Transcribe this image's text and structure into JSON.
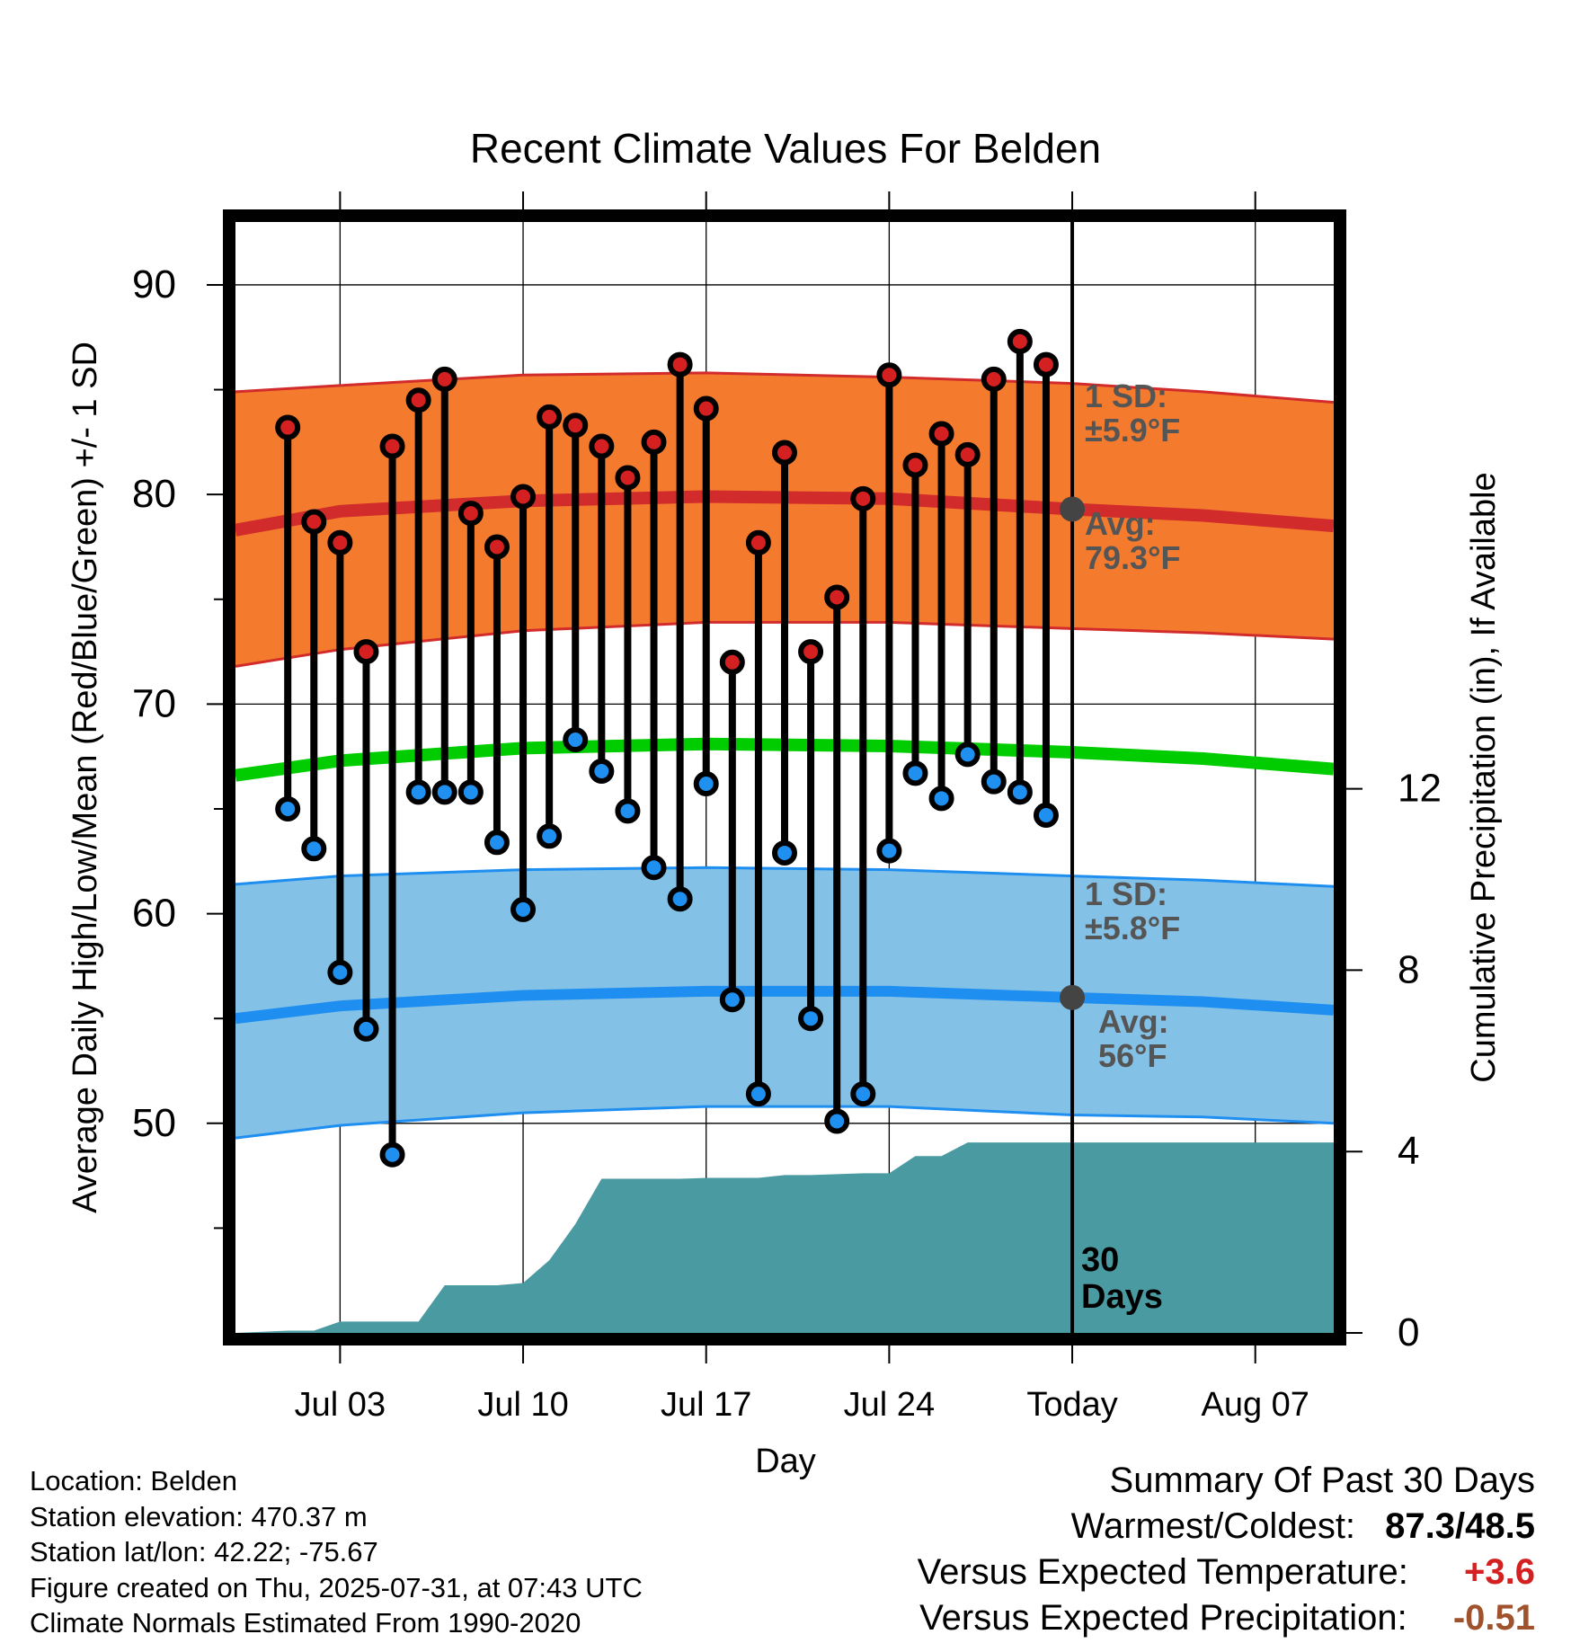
{
  "chart_data": {
    "type": "line",
    "title": "Recent Climate Values For Belden",
    "xlabel": "Day",
    "ylabel_left": "Average Daily High/Low/Mean (Red/Blue/Green) +/- 1 SD",
    "ylabel_right": "Cumulative Precipitation (in), If Available",
    "xlim": [
      "2025-06-29",
      "2025-08-10"
    ],
    "ylim_left": [
      40,
      93
    ],
    "ylim_right": [
      0,
      24.5
    ],
    "x_ticks": [
      {
        "date": "2025-07-03",
        "label": "Jul 03"
      },
      {
        "date": "2025-07-10",
        "label": "Jul 10"
      },
      {
        "date": "2025-07-17",
        "label": "Jul 17"
      },
      {
        "date": "2025-07-24",
        "label": "Jul 24"
      },
      {
        "date": "2025-07-31",
        "label": "Today"
      },
      {
        "date": "2025-08-07",
        "label": "Aug 07"
      }
    ],
    "y_ticks_left": [
      50,
      60,
      70,
      80,
      90
    ],
    "y_ticks_right": [
      0,
      4,
      8,
      12
    ],
    "grid": true,
    "today": "2025-07-31",
    "period_label": "30\nDays",
    "days": [
      "2025-07-01",
      "2025-07-02",
      "2025-07-03",
      "2025-07-04",
      "2025-07-05",
      "2025-07-06",
      "2025-07-07",
      "2025-07-08",
      "2025-07-09",
      "2025-07-10",
      "2025-07-11",
      "2025-07-12",
      "2025-07-13",
      "2025-07-14",
      "2025-07-15",
      "2025-07-16",
      "2025-07-17",
      "2025-07-18",
      "2025-07-19",
      "2025-07-20",
      "2025-07-21",
      "2025-07-22",
      "2025-07-23",
      "2025-07-24",
      "2025-07-25",
      "2025-07-26",
      "2025-07-27",
      "2025-07-28",
      "2025-07-29",
      "2025-07-30"
    ],
    "daily_high": [
      83.2,
      78.7,
      77.7,
      72.5,
      82.3,
      84.5,
      85.5,
      79.1,
      77.5,
      79.9,
      83.7,
      83.3,
      82.3,
      80.8,
      82.5,
      86.2,
      84.1,
      72.0,
      77.7,
      82.0,
      72.5,
      75.1,
      79.8,
      85.7,
      81.4,
      82.9,
      81.9,
      85.5,
      87.3,
      86.2
    ],
    "daily_low": [
      65.0,
      63.1,
      57.2,
      54.5,
      48.5,
      65.8,
      65.8,
      65.8,
      63.4,
      60.2,
      63.7,
      68.3,
      66.8,
      64.9,
      62.2,
      60.7,
      66.2,
      55.9,
      51.4,
      62.9,
      55.0,
      50.1,
      51.4,
      63.0,
      66.7,
      65.5,
      67.6,
      66.3,
      65.8,
      64.7
    ],
    "normals_x": [
      "2025-06-29",
      "2025-07-03",
      "2025-07-10",
      "2025-07-17",
      "2025-07-24",
      "2025-07-31",
      "2025-08-05",
      "2025-08-10"
    ],
    "high_avg": [
      78.3,
      79.2,
      79.7,
      79.9,
      79.8,
      79.3,
      79.0,
      78.5
    ],
    "high_upper": [
      84.9,
      85.2,
      85.7,
      85.8,
      85.6,
      85.3,
      84.9,
      84.4
    ],
    "high_lower": [
      71.8,
      72.6,
      73.5,
      73.9,
      73.9,
      73.6,
      73.4,
      73.1
    ],
    "low_avg": [
      55.0,
      55.6,
      56.1,
      56.3,
      56.3,
      56.0,
      55.8,
      55.4
    ],
    "low_upper": [
      61.4,
      61.8,
      62.1,
      62.2,
      62.1,
      61.8,
      61.6,
      61.3
    ],
    "low_lower": [
      49.3,
      49.9,
      50.5,
      50.8,
      50.8,
      50.4,
      50.3,
      50.0
    ],
    "mean_avg": [
      66.6,
      67.3,
      67.9,
      68.1,
      68.0,
      67.7,
      67.4,
      66.9
    ],
    "precip_x": [
      "2025-06-29",
      "2025-07-01",
      "2025-07-02",
      "2025-07-03",
      "2025-07-04",
      "2025-07-05",
      "2025-07-06",
      "2025-07-07",
      "2025-07-08",
      "2025-07-09",
      "2025-07-10",
      "2025-07-11",
      "2025-07-12",
      "2025-07-13",
      "2025-07-14",
      "2025-07-15",
      "2025-07-16",
      "2025-07-17",
      "2025-07-18",
      "2025-07-19",
      "2025-07-20",
      "2025-07-21",
      "2025-07-22",
      "2025-07-23",
      "2025-07-24",
      "2025-07-25",
      "2025-07-26",
      "2025-07-27",
      "2025-07-28",
      "2025-07-29",
      "2025-07-30",
      "2025-08-10"
    ],
    "precip_cum": [
      0,
      0.05,
      0.05,
      0.25,
      0.25,
      0.25,
      0.25,
      1.05,
      1.05,
      1.05,
      1.1,
      1.6,
      2.4,
      3.4,
      3.4,
      3.4,
      3.4,
      3.42,
      3.42,
      3.42,
      3.48,
      3.48,
      3.5,
      3.52,
      3.52,
      3.9,
      3.9,
      4.2,
      4.2,
      4.2,
      4.2,
      4.2
    ],
    "annotations": {
      "high_sd": {
        "line1": "1 SD:",
        "line2": "±5.9°F"
      },
      "high_avg": {
        "line1": "Avg:",
        "line2": "79.3°F",
        "value": 79.3
      },
      "low_sd": {
        "line1": "1 SD:",
        "line2": "±5.8°F"
      },
      "low_avg": {
        "line1": "Avg:",
        "line2": "56°F",
        "value": 56
      }
    },
    "colors": {
      "high_band": "#f47b2e",
      "high_line": "#d22b2b",
      "low_band": "#84c1e6",
      "low_line": "#1e8ff0",
      "mean_line": "#00cc00",
      "precip": "#4a9aa2",
      "high_dot": "#d42020",
      "low_dot": "#1f8ff0",
      "annotation": "#555555"
    }
  },
  "footer": {
    "location": "Location: Belden",
    "elevation": "Station elevation: 470.37 m",
    "latlon": "Station lat/lon: 42.22; -75.67",
    "created": "Figure created on Thu, 2025-07-31, at 07:43 UTC",
    "normals": "Climate Normals Estimated From 1990-2020"
  },
  "summary": {
    "title": "Summary Of Past 30 Days",
    "warmest_label": "Warmest/Coldest:",
    "warmest_value": "87.3/48.5",
    "temp_label": "Versus Expected Temperature:",
    "temp_value": "+3.6",
    "temp_color": "#d42020",
    "precip_label": "Versus Expected Precipitation:",
    "precip_value": "-0.51",
    "precip_color": "#a0522d"
  }
}
